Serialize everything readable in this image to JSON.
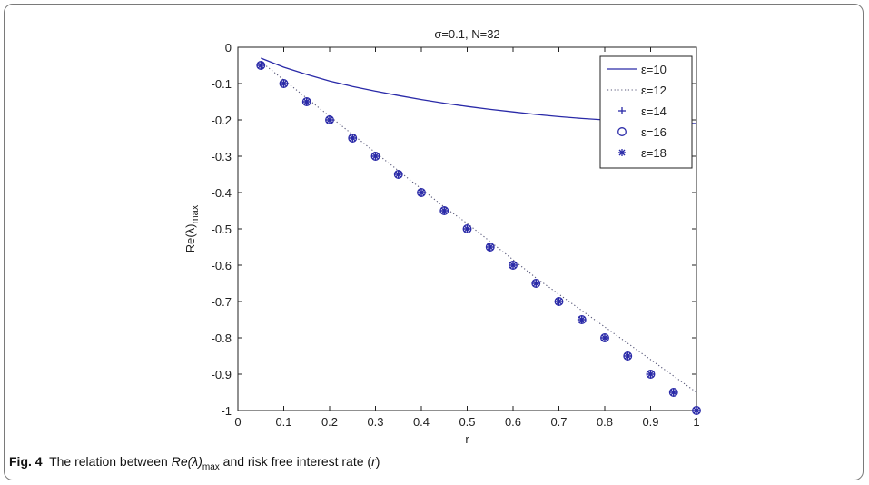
{
  "chart_data": {
    "type": "line",
    "title": "σ=0.1, N=32",
    "xlabel": "r",
    "ylabel_main": "Re(λ)",
    "ylabel_sub": "max",
    "xlim": [
      0,
      1
    ],
    "ylim": [
      -1,
      0
    ],
    "xticks": [
      "0",
      "0.1",
      "0.2",
      "0.3",
      "0.4",
      "0.5",
      "0.6",
      "0.7",
      "0.8",
      "0.9",
      "1"
    ],
    "yticks": [
      "0",
      "-0.1",
      "-0.2",
      "-0.3",
      "-0.4",
      "-0.5",
      "-0.6",
      "-0.7",
      "-0.8",
      "-0.9",
      "-1"
    ],
    "grid": false,
    "legend_position": "top-right",
    "x": [
      0.05,
      0.1,
      0.15,
      0.2,
      0.25,
      0.3,
      0.35,
      0.4,
      0.45,
      0.5,
      0.55,
      0.6,
      0.65,
      0.7,
      0.75,
      0.8,
      0.85,
      0.9,
      0.95,
      1.0
    ],
    "series": [
      {
        "name": "ε=10",
        "style": "solid",
        "color": "#2a2aa8",
        "values": [
          -0.03,
          -0.055,
          -0.075,
          -0.093,
          -0.108,
          -0.121,
          -0.133,
          -0.144,
          -0.154,
          -0.163,
          -0.171,
          -0.178,
          -0.185,
          -0.191,
          -0.196,
          -0.2,
          -0.203,
          -0.206,
          -0.208,
          -0.21
        ]
      },
      {
        "name": "ε=12",
        "style": "dotted",
        "color": "#555577",
        "values": [
          -0.04,
          -0.09,
          -0.14,
          -0.19,
          -0.24,
          -0.29,
          -0.34,
          -0.39,
          -0.44,
          -0.485,
          -0.535,
          -0.585,
          -0.635,
          -0.68,
          -0.725,
          -0.77,
          -0.815,
          -0.86,
          -0.905,
          -0.95
        ]
      },
      {
        "name": "ε=14",
        "style": "plus",
        "color": "#2a2aa8",
        "values": [
          -0.05,
          -0.1,
          -0.15,
          -0.2,
          -0.25,
          -0.3,
          -0.35,
          -0.4,
          -0.45,
          -0.5,
          -0.55,
          -0.6,
          -0.65,
          -0.7,
          -0.75,
          -0.8,
          -0.85,
          -0.9,
          -0.95,
          -1.0
        ]
      },
      {
        "name": "ε=16",
        "style": "circle",
        "color": "#2a2aa8",
        "values": [
          -0.05,
          -0.1,
          -0.15,
          -0.2,
          -0.25,
          -0.3,
          -0.35,
          -0.4,
          -0.45,
          -0.5,
          -0.55,
          -0.6,
          -0.65,
          -0.7,
          -0.75,
          -0.8,
          -0.85,
          -0.9,
          -0.95,
          -1.0
        ]
      },
      {
        "name": "ε=18",
        "style": "star",
        "color": "#2a2aa8",
        "values": [
          -0.05,
          -0.1,
          -0.15,
          -0.2,
          -0.25,
          -0.3,
          -0.35,
          -0.4,
          -0.45,
          -0.5,
          -0.55,
          -0.6,
          -0.65,
          -0.7,
          -0.75,
          -0.8,
          -0.85,
          -0.9,
          -0.95,
          -1.0
        ]
      }
    ]
  },
  "caption": {
    "label": "Fig. 4",
    "text_before": "The relation between ",
    "italic_main": "Re",
    "italic_lambda": "(λ)",
    "sub": "max",
    "text_after": " and risk free interest rate (",
    "italic_r": "r",
    "text_end": ")"
  }
}
